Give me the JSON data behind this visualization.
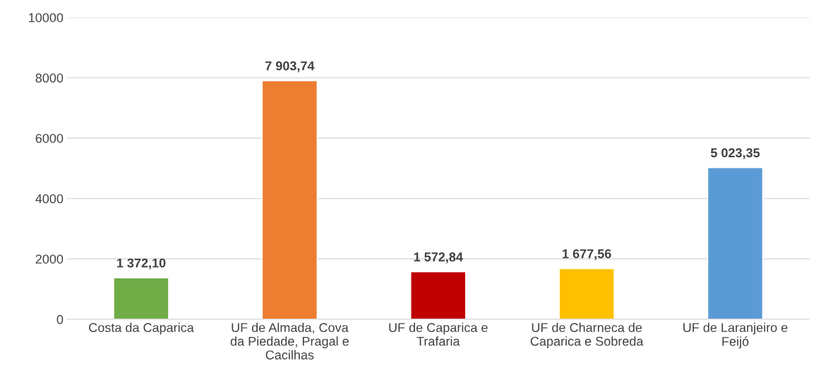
{
  "chart_data": {
    "type": "bar",
    "categories": [
      "Costa da Caparica",
      "UF de Almada, Cova da Piedade, Pragal e Cacilhas",
      "UF de Caparica e Trafaria",
      "UF de Charneca de Caparica e Sobreda",
      "UF de Laranjeiro e Feijó"
    ],
    "values": [
      1372.1,
      7903.74,
      1572.84,
      1677.56,
      5023.35
    ],
    "colors": [
      "#70ad47",
      "#ed7d31",
      "#c00000",
      "#ffc000",
      "#5b9bd5"
    ],
    "value_labels": [
      "1 372,10",
      "7 903,74",
      "1 572,84",
      "1 677,56",
      "5 023,35"
    ],
    "ylim": [
      0,
      10000
    ],
    "yticks": [
      0,
      2000,
      4000,
      6000,
      8000,
      10000
    ],
    "grid": "y",
    "legend": false
  }
}
